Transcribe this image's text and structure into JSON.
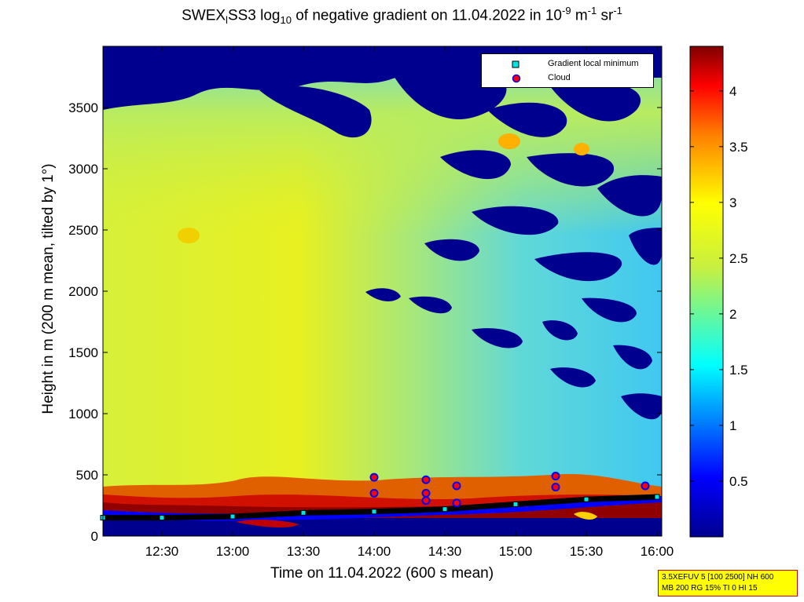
{
  "title": {
    "prefix": "SWEX",
    "sub_station": "l",
    "middle": "SS3 log",
    "sub_log": "10",
    "rest": " of negative gradient on 11.04.2022 in 10",
    "sup_exp": "-9",
    "unit1": " m",
    "sup_unit1": "-1",
    "unit2": " sr",
    "sup_unit2": "-1"
  },
  "legend": {
    "items": [
      {
        "label": "Gradient local minimum",
        "marker": "cyan-square"
      },
      {
        "label": "Cloud",
        "marker": "red-circle"
      }
    ]
  },
  "info_box": {
    "line1": "3.5XEFUV 5 [100 2500] NH 600",
    "line2": "MB 200 RG 15% TI 0 HI 15"
  },
  "colors": {
    "low": "#00008f",
    "mid_low": "#00bfff",
    "mid": "#d8f030",
    "mid_high": "#ffb000",
    "high": "#800000",
    "gradient_min_marker": "#00e5e5",
    "cloud_marker": "#ff0000"
  },
  "chart_data": {
    "type": "heatmap",
    "xlabel": "Time on 11.04.2022 (600 s mean)",
    "ylabel": "Height in m (200 m mean, tilted by 1°)",
    "xticks": [
      "12:30",
      "13:00",
      "13:30",
      "14:00",
      "14:30",
      "15:00",
      "15:30",
      "16:00"
    ],
    "yticks": [
      "0",
      "500",
      "1000",
      "1500",
      "2000",
      "2500",
      "3000",
      "3500"
    ],
    "colorbar_ticks": [
      "0.5",
      "1",
      "1.5",
      "2",
      "2.5",
      "3",
      "3.5",
      "4"
    ],
    "colorbar_range": [
      0,
      4.4
    ],
    "xlim": [
      "12:05",
      "16:02"
    ],
    "ylim": [
      0,
      4000
    ],
    "boundary_layer_height_m": [
      {
        "time": "12:05",
        "height": 150
      },
      {
        "time": "12:30",
        "height": 150
      },
      {
        "time": "13:00",
        "height": 160
      },
      {
        "time": "13:30",
        "height": 190
      },
      {
        "time": "14:00",
        "height": 200
      },
      {
        "time": "14:30",
        "height": 220
      },
      {
        "time": "15:00",
        "height": 260
      },
      {
        "time": "15:30",
        "height": 300
      },
      {
        "time": "16:00",
        "height": 320
      }
    ],
    "cloud_points": [
      {
        "time": "14:00",
        "height": 480
      },
      {
        "time": "14:00",
        "height": 350
      },
      {
        "time": "14:22",
        "height": 460
      },
      {
        "time": "14:22",
        "height": 350
      },
      {
        "time": "14:22",
        "height": 290
      },
      {
        "time": "14:35",
        "height": 410
      },
      {
        "time": "14:35",
        "height": 270
      },
      {
        "time": "15:17",
        "height": 490
      },
      {
        "time": "15:17",
        "height": 400
      },
      {
        "time": "15:55",
        "height": 410
      }
    ]
  }
}
